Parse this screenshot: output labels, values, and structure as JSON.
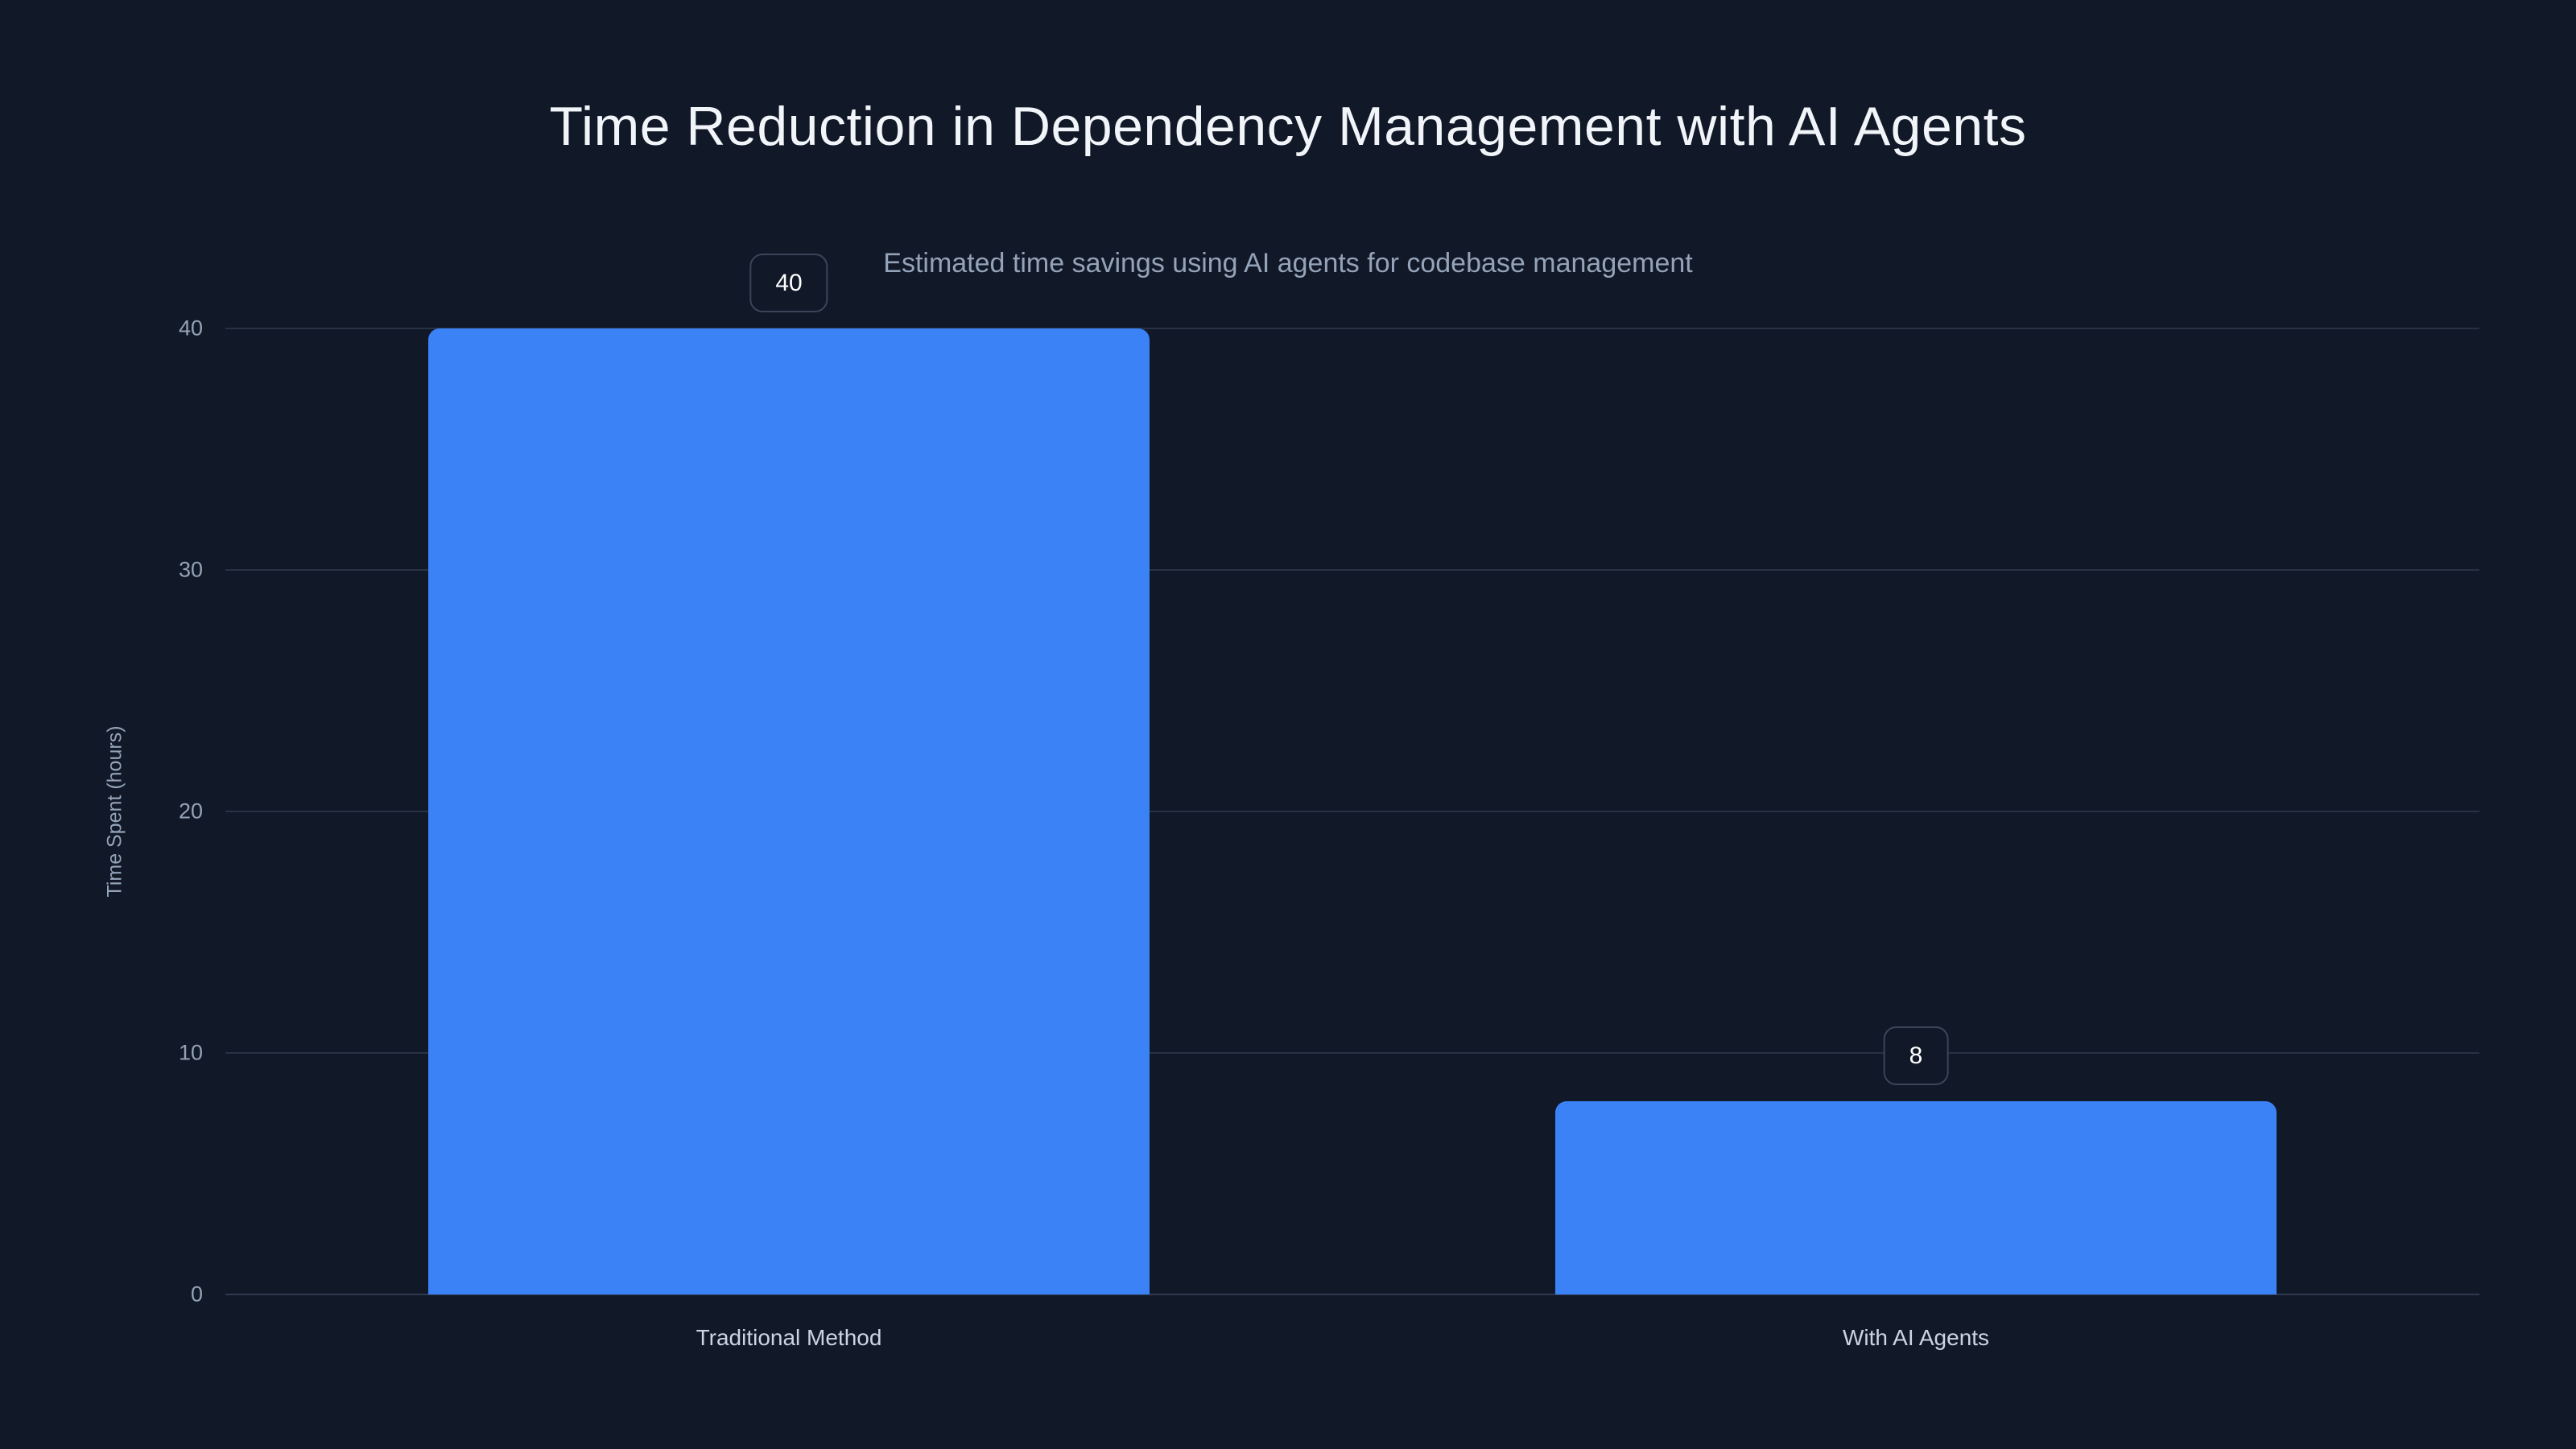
{
  "page": {
    "background": "#111827",
    "accent": "#3b82f6"
  },
  "chart_data": {
    "type": "bar",
    "title": "Time Reduction in Dependency Management with AI Agents",
    "subtitle": "Estimated time savings using AI agents for codebase management",
    "categories": [
      "Traditional Method",
      "With AI Agents"
    ],
    "values": [
      40,
      8
    ],
    "data_labels": [
      "40",
      "8"
    ],
    "xlabel": "",
    "ylabel": "Time Spent (hours)",
    "yticks": [
      "0",
      "10",
      "20",
      "30",
      "40"
    ],
    "ytick_values": [
      0,
      10,
      20,
      30,
      40
    ],
    "ylim": [
      0,
      40
    ],
    "grid": "horizontal",
    "legend_position": "none",
    "bar_color": "#3b82f6",
    "colors": {
      "background": "#111827",
      "title": "#f1f5f9",
      "subtitle": "#94a3b8",
      "tick": "#94a3b8",
      "category": "#cbd5e1",
      "gridline": "#273245",
      "badge_border": "#3a4559",
      "badge_text": "#ffffff"
    }
  }
}
